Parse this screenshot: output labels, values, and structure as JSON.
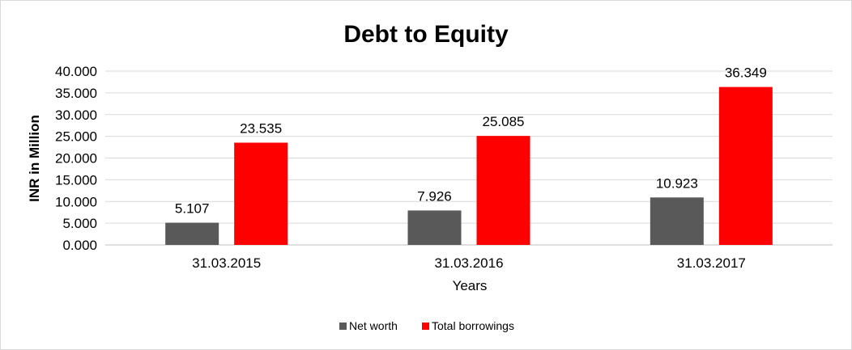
{
  "chart_data": {
    "type": "bar",
    "title": "Debt to Equity",
    "xlabel": "Years",
    "ylabel": "INR in Million",
    "categories": [
      "31.03.2015",
      "31.03.2016",
      "31.03.2017"
    ],
    "series": [
      {
        "name": "Net worth",
        "color": "#595959",
        "values": [
          5.107,
          7.926,
          10.923
        ],
        "labels": [
          "5.107",
          "7.926",
          "10.923"
        ]
      },
      {
        "name": "Total borrowings",
        "color": "#ff0000",
        "values": [
          23.535,
          25.085,
          36.349
        ],
        "labels": [
          "23.535",
          "25.085",
          "36.349"
        ]
      }
    ],
    "ylim": [
      0,
      40
    ],
    "yticks": [
      "0.000",
      "5.000",
      "10.000",
      "15.000",
      "20.000",
      "25.000",
      "30.000",
      "35.000",
      "40.000"
    ],
    "grid": true,
    "legend_position": "bottom"
  }
}
